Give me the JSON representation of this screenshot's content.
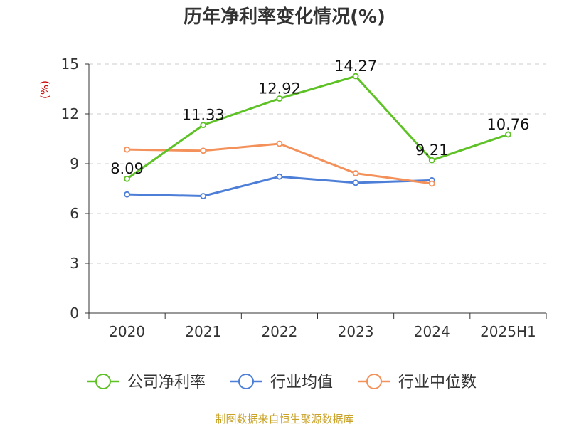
{
  "chart_data": {
    "type": "line",
    "title": "历年净利率变化情况(%)",
    "ylabel": "(%)",
    "categories": [
      "2020",
      "2021",
      "2022",
      "2023",
      "2024",
      "2025H1"
    ],
    "ylim": [
      0,
      15
    ],
    "yticks": [
      "0",
      "3",
      "6",
      "9",
      "12",
      "15"
    ],
    "grid": true,
    "legend_position": "bottom",
    "series": [
      {
        "name": "公司净利率",
        "color": "#5ec226",
        "values": [
          8.09,
          11.33,
          12.92,
          14.27,
          9.21,
          10.76
        ],
        "labels": [
          "8.09",
          "11.33",
          "12.92",
          "14.27",
          "9.21",
          "10.76"
        ]
      },
      {
        "name": "行业均值",
        "color": "#4e7fd8",
        "values": [
          7.15,
          7.05,
          8.22,
          7.85,
          8.0,
          null
        ]
      },
      {
        "name": "行业中位数",
        "color": "#f4915a",
        "values": [
          9.85,
          9.78,
          10.2,
          8.42,
          7.8,
          null
        ]
      }
    ]
  },
  "source": "制图数据来自恒生聚源数据库",
  "colors": {
    "title": "#333333",
    "ylabel": "#cc0000",
    "source": "#c9a227",
    "grid": "#cccccc"
  }
}
